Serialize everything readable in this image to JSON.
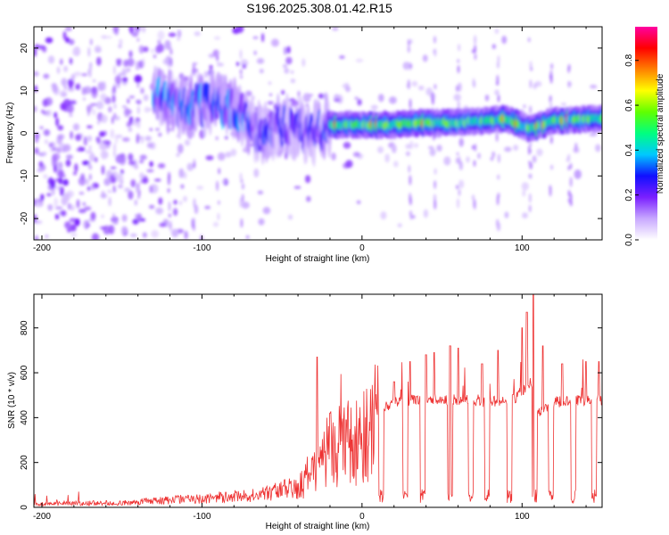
{
  "title": "S196.2025.308.01.42.R15",
  "chart_data": [
    {
      "type": "heatmap",
      "xlabel": "Height of straight line (km)",
      "ylabel": "Frequency (Hz)",
      "xlim": [
        -205,
        150
      ],
      "ylim": [
        -25,
        25
      ],
      "x_ticks": [
        -200,
        -100,
        0,
        100
      ],
      "y_ticks": [
        -20,
        -10,
        0,
        10,
        20
      ],
      "colorbar": {
        "label": "Normalized spectral amplitude",
        "range": [
          0,
          0.95
        ],
        "ticks": [
          0.0,
          0.2,
          0.4,
          0.6,
          0.8
        ],
        "colors": [
          "#ffffff",
          "#c8a8ff",
          "#7a1fff",
          "#1010ff",
          "#00c8ff",
          "#00ff80",
          "#60ff00",
          "#ffff00",
          "#ff8000",
          "#ff0000",
          "#ff00a0"
        ]
      },
      "ridge": {
        "description": "Dominant frequency ridge",
        "points": [
          [
            -125,
            8
          ],
          [
            -110,
            6
          ],
          [
            -95,
            7
          ],
          [
            -80,
            6
          ],
          [
            -65,
            0
          ],
          [
            -50,
            2
          ],
          [
            -30,
            0
          ],
          [
            -20,
            2
          ],
          [
            0,
            2
          ],
          [
            20,
            2
          ],
          [
            40,
            2.5
          ],
          [
            60,
            2.5
          ],
          [
            80,
            3
          ],
          [
            90,
            3.5
          ],
          [
            105,
            1
          ],
          [
            120,
            3
          ],
          [
            150,
            3.5
          ]
        ]
      }
    },
    {
      "type": "line",
      "xlabel": "Height of straight line (km)",
      "ylabel": "SNR (10 * v/v)",
      "xlim": [
        -205,
        150
      ],
      "ylim": [
        0,
        950
      ],
      "x_ticks": [
        -200,
        -100,
        0,
        100
      ],
      "y_ticks": [
        0,
        200,
        400,
        600,
        800
      ],
      "series": [
        {
          "name": "SNR",
          "color": "#ee3333",
          "envelope": [
            [
              -205,
              15
            ],
            [
              -150,
              20
            ],
            [
              -100,
              40
            ],
            [
              -60,
              60
            ],
            [
              -40,
              90
            ],
            [
              -30,
              180
            ],
            [
              -20,
              280
            ],
            [
              -10,
              300
            ],
            [
              0,
              330
            ],
            [
              10,
              420
            ],
            [
              20,
              470
            ],
            [
              40,
              480
            ],
            [
              60,
              480
            ],
            [
              80,
              470
            ],
            [
              95,
              480
            ],
            [
              105,
              560
            ],
            [
              110,
              420
            ],
            [
              120,
              470
            ],
            [
              150,
              480
            ]
          ],
          "spikes": [
            [
              -28,
              670
            ],
            [
              -20,
              420
            ],
            [
              -10,
              390
            ],
            [
              20,
              560
            ],
            [
              30,
              650
            ],
            [
              40,
              680
            ],
            [
              45,
              690
            ],
            [
              55,
              720
            ],
            [
              60,
              710
            ],
            [
              75,
              640
            ],
            [
              85,
              700
            ],
            [
              100,
              800
            ],
            [
              103,
              870
            ],
            [
              107,
              950
            ],
            [
              113,
              720
            ],
            [
              125,
              640
            ],
            [
              140,
              650
            ],
            [
              148,
              650
            ]
          ],
          "dips": [
            12,
            27,
            38,
            55,
            68,
            78,
            92,
            108,
            118,
            132,
            145
          ]
        }
      ]
    }
  ]
}
